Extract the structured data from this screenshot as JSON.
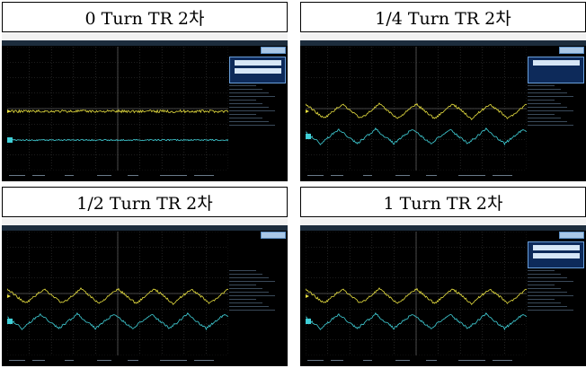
{
  "panels": [
    {
      "caption": "0 Turn TR 2차",
      "trace": "flat",
      "side_panel": true,
      "side_panel_blocks": 2
    },
    {
      "caption": "1/4 Turn TR 2차",
      "trace": "wave",
      "side_panel": true,
      "side_panel_blocks": 1
    },
    {
      "caption": "1/2 Turn TR 2차",
      "trace": "wave",
      "side_panel": false,
      "side_panel_blocks": 0
    },
    {
      "caption": "1 Turn TR 2차",
      "trace": "wave",
      "side_panel": true,
      "side_panel_blocks": 2
    }
  ],
  "colors": {
    "ch1": "#e8e040",
    "ch2": "#40d0d8",
    "grid": "#3a3a3a",
    "screen": "#000000"
  }
}
